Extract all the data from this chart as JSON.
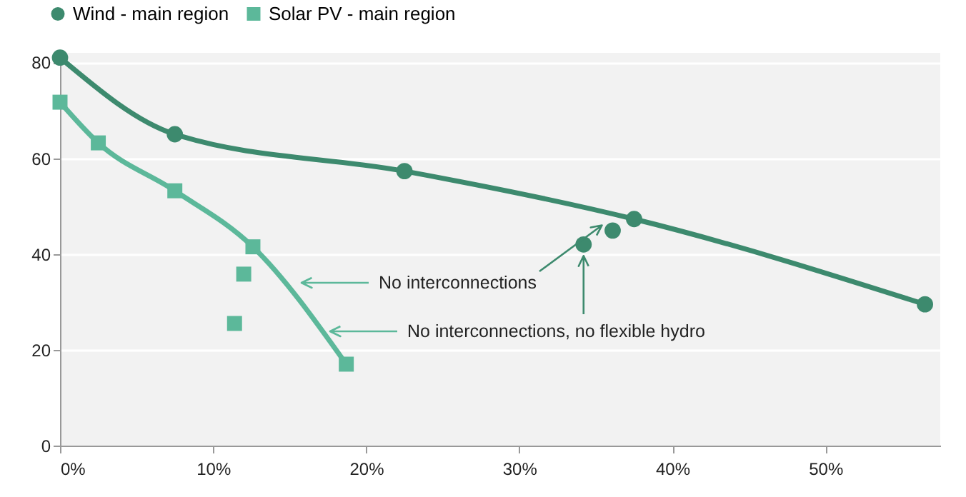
{
  "chart_data": {
    "type": "line",
    "xlim": [
      0,
      57.5
    ],
    "ylim": [
      0,
      82
    ],
    "xticks": [
      {
        "value": 0,
        "label": "0%"
      },
      {
        "value": 10,
        "label": "10%"
      },
      {
        "value": 20,
        "label": "20%"
      },
      {
        "value": 30,
        "label": "30%"
      },
      {
        "value": 40,
        "label": "40%"
      },
      {
        "value": 50,
        "label": "50%"
      }
    ],
    "yticks": [
      0,
      20,
      40,
      60,
      80
    ],
    "grid": "y",
    "legend": "top left",
    "series": [
      {
        "name": "Wind - main region",
        "marker": "circle",
        "color": "#3d8a6e",
        "x": [
          0,
          7.5,
          22.5,
          37.5,
          56.5
        ],
        "values": [
          81,
          65,
          57.3,
          47.3,
          29.5
        ]
      },
      {
        "name": "Solar PV - main region",
        "marker": "square",
        "color": "#5cb89a",
        "x": [
          0,
          2.5,
          7.5,
          12.6,
          18.7
        ],
        "values": [
          71.7,
          63.2,
          53.2,
          41.5,
          17
        ]
      },
      {
        "type": "scatter",
        "marker": "circle",
        "color": "#3d8a6e",
        "x": [
          34.2,
          36.1
        ],
        "values": [
          42,
          44.9
        ]
      },
      {
        "type": "scatter",
        "marker": "square",
        "color": "#5cb89a",
        "x": [
          12,
          11.4
        ],
        "values": [
          35.8,
          25.5
        ]
      }
    ],
    "annotations": [
      {
        "text": "No interconnections",
        "x": 35.4,
        "y": 46
      },
      "No interconnections, no flexible hydro"
    ]
  }
}
